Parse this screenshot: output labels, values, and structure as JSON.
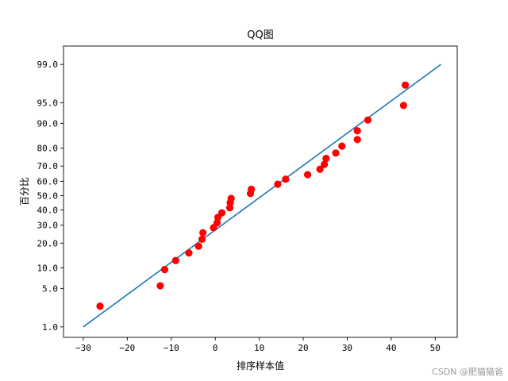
{
  "chart_data": {
    "type": "scatter",
    "title": "QQ图",
    "xlabel": "排序样本值",
    "ylabel": "百分比",
    "xlim": [
      -34.5,
      55
    ],
    "ylim_percentile": [
      0.6,
      99.6
    ],
    "y_scale": "normal-probability",
    "grid": false,
    "x_ticks": [
      -30,
      -20,
      -10,
      0,
      10,
      20,
      30,
      40,
      50
    ],
    "x_tick_labels": [
      "−30",
      "−20",
      "−10",
      "0",
      "10",
      "20",
      "30",
      "40",
      "50"
    ],
    "y_ticks": [
      1.0,
      5.0,
      10.0,
      20.0,
      30.0,
      40.0,
      50.0,
      60.0,
      70.0,
      80.0,
      90.0,
      95.0,
      99.0
    ],
    "y_tick_labels": [
      "1.0",
      "5.0",
      "10.0",
      "20.0",
      "30.0",
      "40.0",
      "50.0",
      "60.0",
      "70.0",
      "80.0",
      "90.0",
      "95.0",
      "99.0"
    ],
    "points": [
      {
        "x": -26.2,
        "y": 2.5
      },
      {
        "x": -12.5,
        "y": 5.5
      },
      {
        "x": -11.5,
        "y": 9.5
      },
      {
        "x": -9.0,
        "y": 12.5
      },
      {
        "x": -6.0,
        "y": 15.5
      },
      {
        "x": -3.8,
        "y": 18.5
      },
      {
        "x": -3.0,
        "y": 22.0
      },
      {
        "x": -2.8,
        "y": 25.5
      },
      {
        "x": -0.4,
        "y": 28.5
      },
      {
        "x": 0.4,
        "y": 31.5
      },
      {
        "x": 0.6,
        "y": 35.0
      },
      {
        "x": 1.5,
        "y": 38.0
      },
      {
        "x": 3.3,
        "y": 41.5
      },
      {
        "x": 3.4,
        "y": 45.0
      },
      {
        "x": 3.6,
        "y": 48.0
      },
      {
        "x": 8.0,
        "y": 51.5
      },
      {
        "x": 8.2,
        "y": 54.5
      },
      {
        "x": 14.2,
        "y": 58.0
      },
      {
        "x": 16.0,
        "y": 61.5
      },
      {
        "x": 21.0,
        "y": 64.5
      },
      {
        "x": 23.8,
        "y": 68.0
      },
      {
        "x": 24.8,
        "y": 71.0
      },
      {
        "x": 25.2,
        "y": 74.5
      },
      {
        "x": 27.4,
        "y": 77.5
      },
      {
        "x": 28.8,
        "y": 81.0
      },
      {
        "x": 32.3,
        "y": 84.0
      },
      {
        "x": 32.3,
        "y": 87.5
      },
      {
        "x": 34.7,
        "y": 91.0
      },
      {
        "x": 42.8,
        "y": 94.5
      },
      {
        "x": 43.2,
        "y": 97.5
      }
    ],
    "fit_line": [
      {
        "x": -30.0,
        "y": 1.0
      },
      {
        "x": 51.3,
        "y": 99.0
      }
    ],
    "point_color": "#ff0000",
    "line_color": "#1f77b4"
  },
  "watermark": "CSDN @肥猫猫爸"
}
